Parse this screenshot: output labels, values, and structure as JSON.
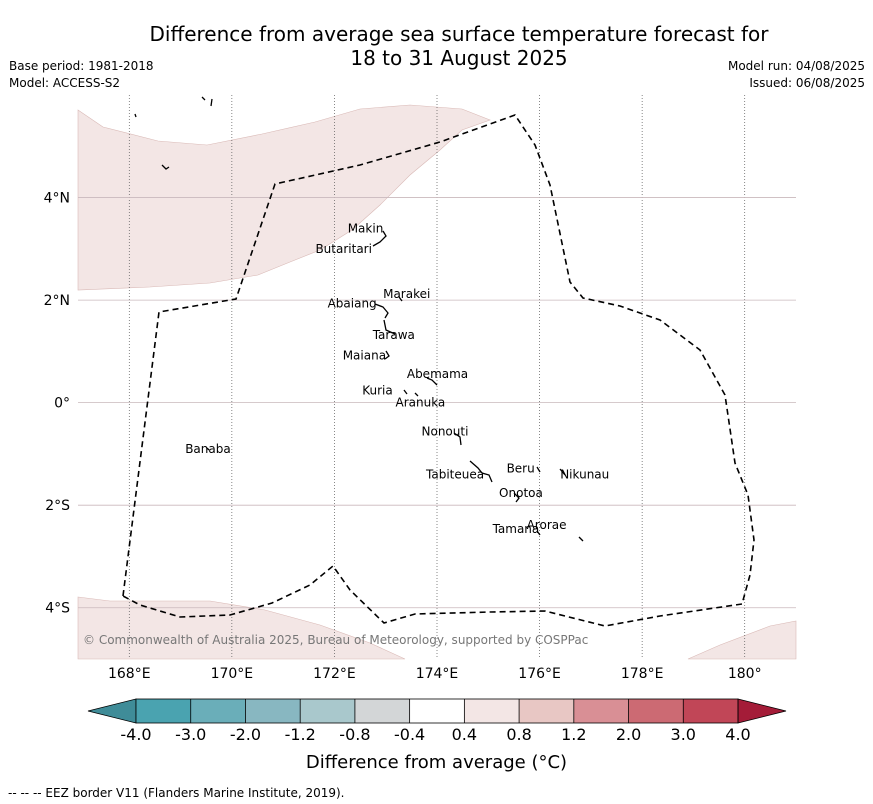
{
  "title": {
    "line1": "Difference from average sea surface temperature forecast for",
    "line2": "18 to 31 August 2025"
  },
  "meta": {
    "base_period": "Base period: 1981-2018",
    "model": "Model: ACCESS-S2",
    "model_run": "Model run: 04/08/2025",
    "issued": "Issued: 06/08/2025"
  },
  "map": {
    "lon_range": [
      167.0,
      181.0
    ],
    "lat_range": [
      -5.0,
      6.0
    ],
    "lon_ticks": [
      "168°E",
      "170°E",
      "172°E",
      "174°E",
      "176°E",
      "178°E",
      "180°"
    ],
    "lat_ticks": [
      "4°N",
      "2°N",
      "0°",
      "2°S",
      "4°S"
    ],
    "copyright": "© Commonwealth of Australia 2025, Bureau of Meteorology, supported by COSPPac",
    "anomaly_fill_color": "#f3e6e5",
    "eez_color": "#000000",
    "places": [
      {
        "name": "Makin",
        "lon": 173.0,
        "lat": 3.2
      },
      {
        "name": "Butaritari",
        "lon": 172.8,
        "lat": 3.0
      },
      {
        "name": "Marakei",
        "lon": 173.3,
        "lat": 2.0
      },
      {
        "name": "Abaiang",
        "lon": 172.9,
        "lat": 1.8
      },
      {
        "name": "Tarawa",
        "lon": 173.0,
        "lat": 1.4
      },
      {
        "name": "Maiana",
        "lon": 173.0,
        "lat": 0.9
      },
      {
        "name": "Abemama",
        "lon": 173.9,
        "lat": 0.4
      },
      {
        "name": "Kuria",
        "lon": 173.4,
        "lat": 0.2
      },
      {
        "name": "Aranuka",
        "lon": 173.6,
        "lat": 0.1
      },
      {
        "name": "Nonouti",
        "lon": 174.4,
        "lat": -0.7
      },
      {
        "name": "Banaba",
        "lon": 169.5,
        "lat": -0.9
      },
      {
        "name": "Beru",
        "lon": 176.0,
        "lat": -1.3
      },
      {
        "name": "Nikunau",
        "lon": 176.5,
        "lat": -1.4
      },
      {
        "name": "Tabiteuea",
        "lon": 174.8,
        "lat": -1.4
      },
      {
        "name": "Onotoa",
        "lon": 175.6,
        "lat": -1.8
      },
      {
        "name": "Tamana",
        "lon": 176.0,
        "lat": -2.5
      },
      {
        "name": "Arorae",
        "lon": 176.8,
        "lat": -2.6
      }
    ]
  },
  "colorbar": {
    "title": "Difference from average (°C)",
    "tick_labels": [
      "-4.0",
      "-3.0",
      "-2.0",
      "-1.2",
      "-0.8",
      "-0.4",
      "0.4",
      "0.8",
      "1.2",
      "2.0",
      "3.0",
      "4.0"
    ],
    "colors": [
      "#3f8c98",
      "#4aa3b0",
      "#6aaeb9",
      "#88b7c1",
      "#a9c8cc",
      "#d3d6d7",
      "#ffffff",
      "#f3e6e5",
      "#e8c7c4",
      "#d98f95",
      "#cc6a73",
      "#c14657",
      "#a41c38"
    ]
  },
  "footer": "--  --  -- EEZ border V11 (Flanders Marine Institute, 2019)."
}
